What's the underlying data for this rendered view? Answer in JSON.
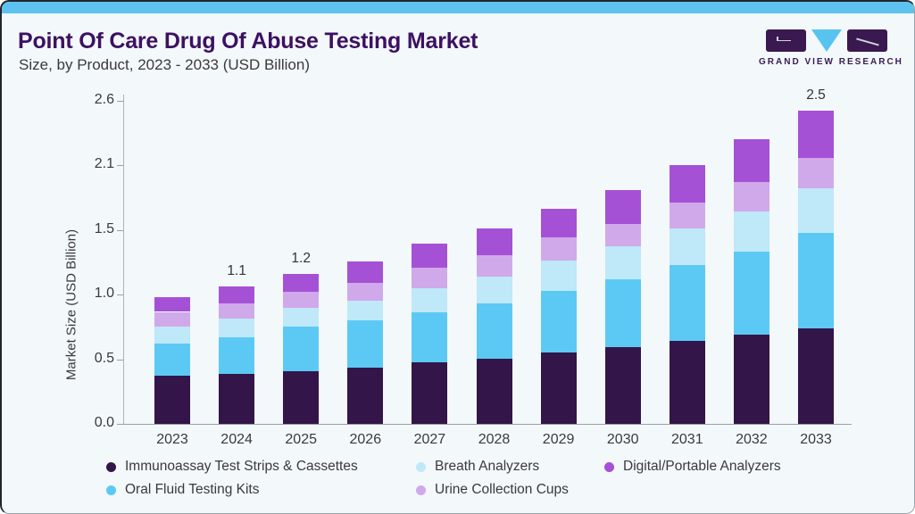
{
  "header": {
    "title": "Point Of Care Drug Of Abuse Testing Market",
    "subtitle": "Size, by Product, 2023 - 2033 (USD Billion)"
  },
  "logo": {
    "name": "GRAND VIEW RESEARCH",
    "accent_blue": "#57c3ef",
    "accent_purple": "#39194f"
  },
  "chart_data": {
    "type": "bar",
    "stacked": true,
    "title": "Point Of Care Drug Of Abuse Testing Market Size, by Product, 2023 - 2033 (USD Billion)",
    "xlabel": "",
    "ylabel": "Market Size (USD Billion)",
    "categories": [
      "2023",
      "2024",
      "2025",
      "2026",
      "2027",
      "2028",
      "2029",
      "2030",
      "2031",
      "2032",
      "2033"
    ],
    "ytick_labels": [
      "0.0",
      "0.5",
      "1.0",
      "1.5",
      "2.1",
      "2.6"
    ],
    "ylim": [
      0,
      2.6
    ],
    "grid": false,
    "legend_position": "bottom",
    "series": [
      {
        "name": "Immunoassay Test Strips & Cassettes",
        "color": "#331549",
        "values": [
          0.38,
          0.4,
          0.42,
          0.45,
          0.49,
          0.52,
          0.57,
          0.61,
          0.66,
          0.71,
          0.76
        ]
      },
      {
        "name": "Oral Fluid Testing Kits",
        "color": "#5cc9f5",
        "values": [
          0.26,
          0.29,
          0.35,
          0.37,
          0.4,
          0.44,
          0.49,
          0.54,
          0.6,
          0.66,
          0.76
        ]
      },
      {
        "name": "Breath Analyzers",
        "color": "#bfe8f9",
        "values": [
          0.13,
          0.15,
          0.15,
          0.16,
          0.19,
          0.21,
          0.24,
          0.26,
          0.29,
          0.32,
          0.35
        ]
      },
      {
        "name": "Urine Collection Cups",
        "color": "#d0a9ea",
        "values": [
          0.12,
          0.12,
          0.13,
          0.14,
          0.16,
          0.17,
          0.18,
          0.18,
          0.21,
          0.23,
          0.24
        ]
      },
      {
        "name": "Digital/Portable Analyzers",
        "color": "#a551d5",
        "values": [
          0.12,
          0.13,
          0.14,
          0.17,
          0.19,
          0.21,
          0.23,
          0.27,
          0.3,
          0.34,
          0.38
        ]
      }
    ],
    "bar_total_labels": [
      "",
      "1.1",
      "1.2",
      "",
      "",
      "",
      "",
      "",
      "",
      "",
      "2.5"
    ]
  },
  "legend": {
    "rows": [
      [
        0,
        2,
        4
      ],
      [
        1,
        3
      ]
    ]
  }
}
